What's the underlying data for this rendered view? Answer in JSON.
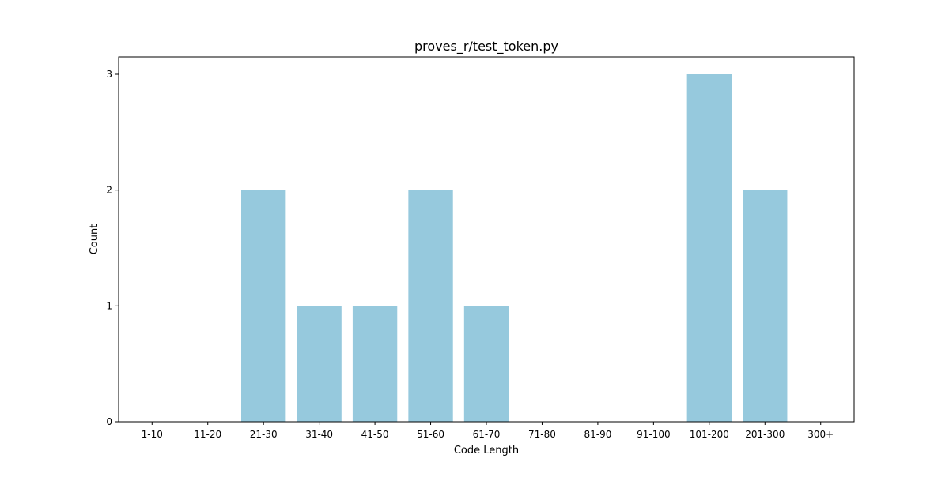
{
  "chart_data": {
    "type": "bar",
    "title": "proves_r/test_token.py",
    "xlabel": "Code Length",
    "ylabel": "Count",
    "categories": [
      "1-10",
      "11-20",
      "21-30",
      "31-40",
      "41-50",
      "51-60",
      "61-70",
      "71-80",
      "81-90",
      "91-100",
      "101-200",
      "201-300",
      "300+"
    ],
    "values": [
      0,
      0,
      2,
      1,
      1,
      2,
      1,
      0,
      0,
      0,
      3,
      2,
      0
    ],
    "ylim": [
      0,
      3.15
    ],
    "yticks": [
      "0",
      "1",
      "2",
      "3"
    ],
    "bar_color": "#96c9dd",
    "grid": false,
    "legend": "none"
  }
}
